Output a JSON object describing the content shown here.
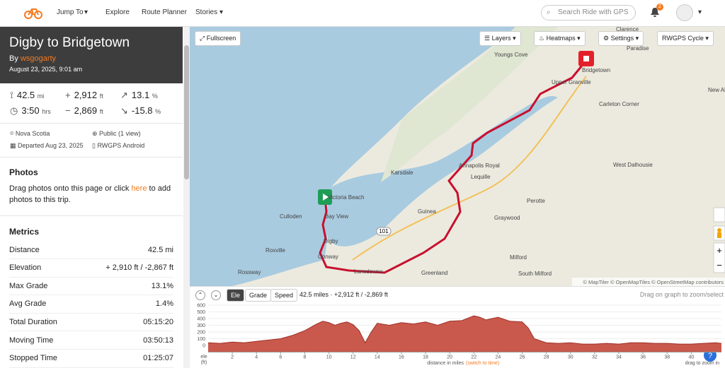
{
  "nav": {
    "items": [
      "Jump To",
      "Explore",
      "Route Planner",
      "Stories"
    ],
    "search": "Search Ride with GPS",
    "notifications": "2"
  },
  "trip": {
    "title": "Digby to Bridgetown",
    "by": "By",
    "user": "wsgogarty",
    "date": "August 23, 2025, 9:01 am",
    "stats": [
      {
        "value": "42.5",
        "unit": "mi"
      },
      {
        "value": "2,912",
        "unit": "ft"
      },
      {
        "value": "13.1",
        "unit": "%"
      },
      {
        "value": "3:50",
        "unit": "hrs"
      },
      {
        "value": "2,869",
        "unit": "ft"
      },
      {
        "value": "-15.8",
        "unit": "%"
      }
    ],
    "info": [
      "Nova Scotia",
      "Public (1 view)",
      "Departed Aug 23, 2025",
      "RWGPS Android"
    ]
  },
  "photos": {
    "heading": "Photos",
    "text_before": "Drag photos onto this page or click",
    "link": "here",
    "text_after": "to add photos to this trip."
  },
  "metrics": {
    "heading": "Metrics",
    "rows": [
      [
        "Distance",
        "42.5 mi"
      ],
      [
        "Elevation",
        "+ 2,910 ft / -2,867 ft"
      ],
      [
        "Max Grade",
        "13.1%"
      ],
      [
        "Avg Grade",
        "1.4%"
      ],
      [
        "Total Duration",
        "05:15:20"
      ],
      [
        "Moving Time",
        "03:50:13"
      ],
      [
        "Stopped Time",
        "01:25:07"
      ]
    ]
  },
  "map": {
    "buttons": [
      "Fullscreen",
      "Layers",
      "Heatmaps",
      "Settings",
      "RWGPS Cycle"
    ],
    "places": [
      "Clarence",
      "Paradise",
      "Youngs Cove",
      "Bridgetown",
      "Upper Granville",
      "New Albany",
      "Carleton Corner",
      "Annapolis Royal",
      "Lequille",
      "Karsdale",
      "West Dalhousie",
      "Victoria Beach",
      "Bay View",
      "Culloden",
      "Guinea",
      "Perotte",
      "Graywood",
      "Digby",
      "Roxville",
      "Conway",
      "Milford",
      "Rossway",
      "Lansdowne",
      "Greenland",
      "South Milford"
    ],
    "road": "101",
    "attribution": "© MapTiler © OpenMapTiles © OpenStreetMap contributors"
  },
  "elevation": {
    "tabs": [
      "Ele",
      "Grade",
      "Speed"
    ],
    "summary": "42.5 miles · +2,912 ft / -2,869 ft",
    "hint": "Drag on graph to zoom/select"
  },
  "chart_data": {
    "type": "area",
    "ylabel": "ele",
    "yunit": "(ft)",
    "xlabel": "distance in miles",
    "switch": "(switch to time)",
    "zoom": "drag to zoom in",
    "color": "#c9594c",
    "x": [
      0,
      1,
      2,
      3,
      4,
      5,
      6,
      7,
      8,
      8.5,
      9,
      9.5,
      10,
      10.5,
      11,
      11.5,
      12,
      12.5,
      13,
      13.5,
      14,
      15,
      16,
      17,
      18,
      19,
      20,
      21,
      22,
      22.5,
      23,
      24,
      25,
      26,
      26.5,
      27,
      28,
      29,
      30,
      31,
      32,
      33,
      34,
      35,
      36,
      37,
      38,
      39,
      40,
      41,
      42,
      42.5
    ],
    "values": [
      40,
      30,
      50,
      40,
      60,
      80,
      100,
      150,
      220,
      270,
      320,
      360,
      340,
      300,
      330,
      350,
      310,
      220,
      40,
      200,
      330,
      300,
      340,
      320,
      350,
      300,
      360,
      370,
      440,
      420,
      380,
      420,
      360,
      350,
      260,
      100,
      40,
      30,
      40,
      20,
      20,
      30,
      20,
      40,
      40,
      30,
      30,
      20,
      20,
      30,
      40,
      30
    ],
    "xlim": [
      0,
      42.5
    ],
    "ylim": [
      -100,
      600
    ],
    "xticks": [
      2,
      4,
      6,
      8,
      10,
      12,
      14,
      16,
      18,
      20,
      22,
      24,
      26,
      28,
      30,
      32,
      34,
      36,
      38,
      40
    ],
    "yticks": [
      0,
      100,
      200,
      300,
      400,
      500,
      600
    ]
  }
}
